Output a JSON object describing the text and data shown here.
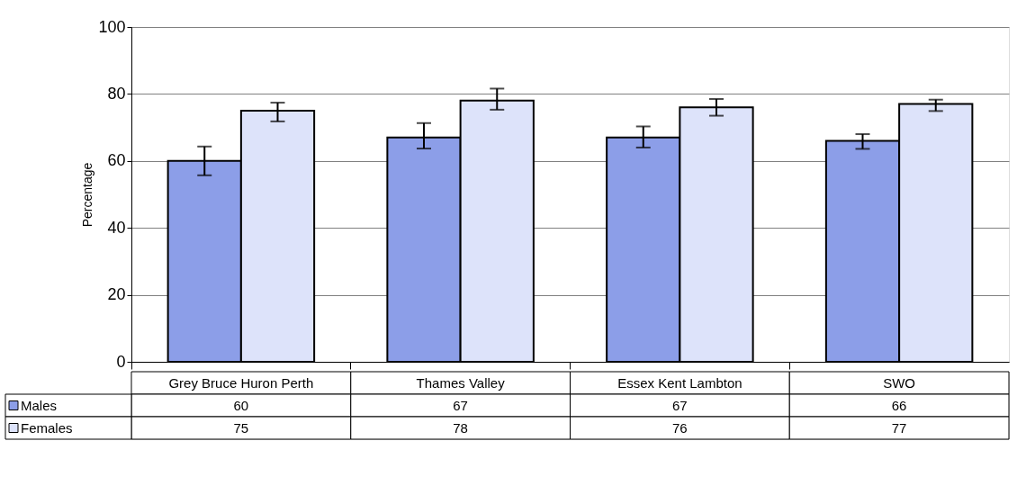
{
  "chart_data": {
    "type": "bar",
    "ylabel": "Percentage",
    "categories": [
      "Grey Bruce Huron Perth",
      "Thames Valley",
      "Essex Kent Lambton",
      "SWO"
    ],
    "series": [
      {
        "name": "Males",
        "color": "#8c9ee8",
        "values": [
          60,
          67,
          67,
          66
        ],
        "errors": [
          [
            55.7,
            64.3
          ],
          [
            63.7,
            71.3
          ],
          [
            64,
            70.3
          ],
          [
            63.6,
            68
          ]
        ]
      },
      {
        "name": "Females",
        "color": "#dde3fa",
        "values": [
          75,
          78,
          76,
          77
        ],
        "errors": [
          [
            71.8,
            77.4
          ],
          [
            75.3,
            81.6
          ],
          [
            73.5,
            78.5
          ],
          [
            74.9,
            78.3
          ]
        ]
      }
    ],
    "ylim": [
      0,
      100
    ],
    "yticks": [
      0,
      20,
      40,
      60,
      80,
      100
    ],
    "grid": "y",
    "data_labels": true,
    "legend": "bottom left"
  }
}
